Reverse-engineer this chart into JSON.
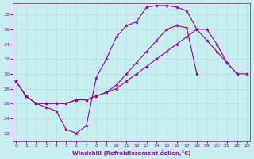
{
  "xlabel": "Windchill (Refroidissement éolien,°C)",
  "bg_color": "#c8eef0",
  "line_color": "#990099",
  "xlim": [
    -0.3,
    23.3
  ],
  "ylim": [
    21,
    39.5
  ],
  "yticks": [
    22,
    24,
    26,
    28,
    30,
    32,
    34,
    36,
    38
  ],
  "xticks": [
    0,
    1,
    2,
    3,
    4,
    5,
    6,
    7,
    8,
    9,
    10,
    11,
    12,
    13,
    14,
    15,
    16,
    17,
    18,
    19,
    20,
    21,
    22,
    23
  ],
  "line1_x": [
    0,
    1,
    2,
    3,
    4,
    5,
    6,
    7,
    8,
    9,
    10,
    11,
    12,
    13,
    14,
    15,
    16,
    17,
    18,
    19,
    20,
    21,
    22
  ],
  "line1_y": [
    29,
    27,
    26,
    25.5,
    25,
    22.5,
    22,
    23,
    29.5,
    32,
    35,
    36.5,
    37,
    39,
    39.2,
    39.2,
    39,
    38.5,
    36,
    34.5,
    33,
    31.5,
    30
  ],
  "line2_x": [
    0,
    1,
    2,
    3,
    4,
    5,
    6,
    7,
    8,
    9,
    10,
    11,
    12,
    13,
    14,
    15,
    16,
    17,
    18,
    19,
    20,
    21,
    22,
    23
  ],
  "line2_y": [
    29,
    27,
    26,
    26,
    26,
    26,
    26.5,
    26.5,
    27,
    27.5,
    28,
    29,
    30,
    31,
    32,
    33,
    34,
    35,
    36,
    36,
    34,
    31.5,
    30,
    30
  ],
  "line3_x": [
    0,
    1,
    2,
    3,
    4,
    5,
    6,
    7,
    8,
    9,
    10,
    11,
    12,
    13,
    14,
    15,
    16,
    17,
    18
  ],
  "line3_y": [
    29,
    27,
    26,
    26,
    26,
    26,
    26.5,
    26.5,
    27,
    27.5,
    28.5,
    30,
    31.5,
    33,
    34.5,
    36,
    36.5,
    36.2,
    30
  ]
}
